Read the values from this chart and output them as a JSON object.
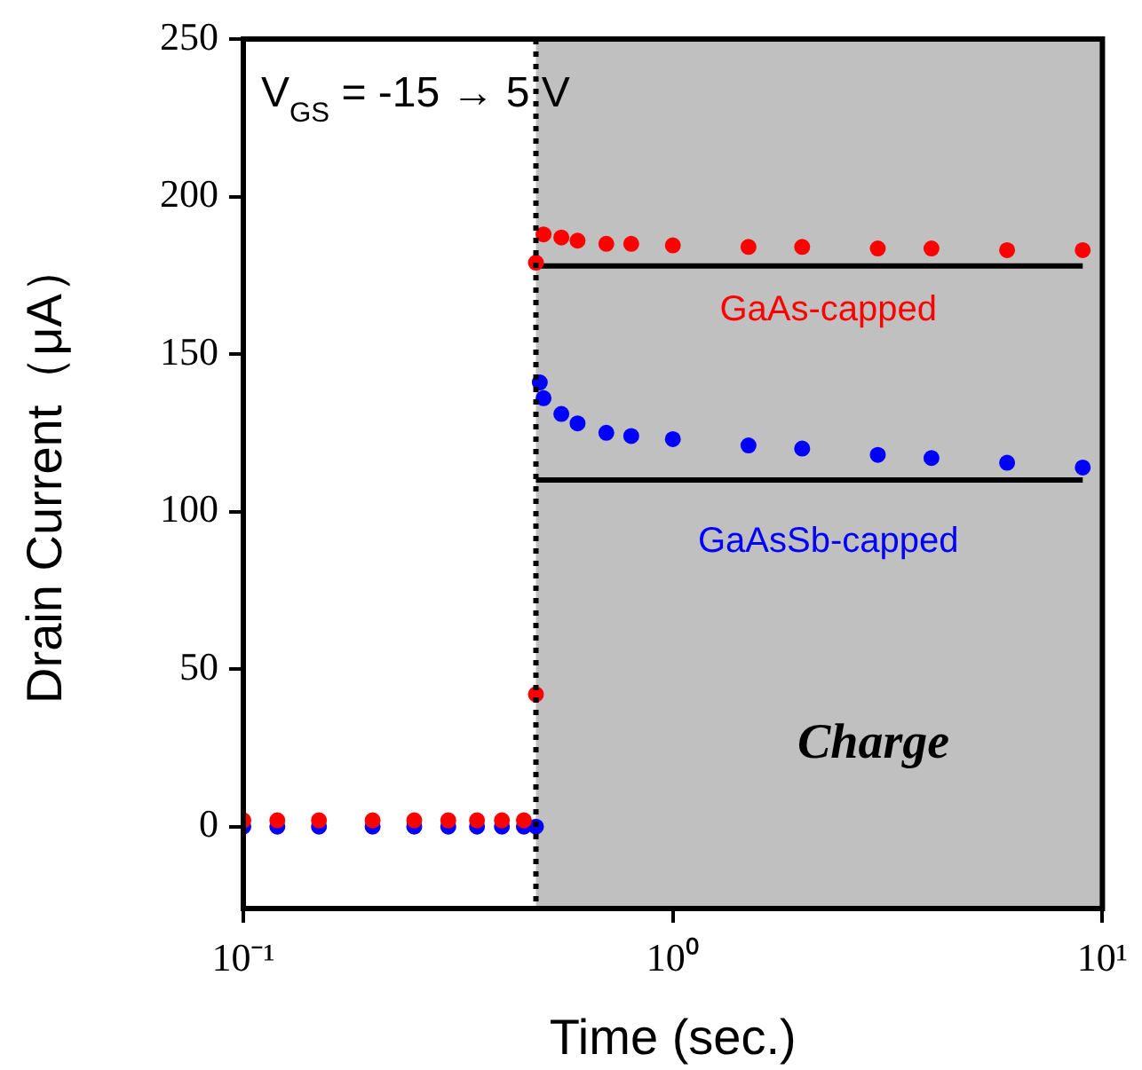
{
  "chart_data": {
    "type": "scatter",
    "xlabel": "Time (sec.)",
    "ylabel": "Drain Current（μA）",
    "log": "x",
    "xlim": [
      0.1,
      10
    ],
    "xticks": [
      {
        "value": 0.1,
        "label": "10⁻¹"
      },
      {
        "value": 1,
        "label": "10⁰"
      },
      {
        "value": 10,
        "label": "10¹"
      }
    ],
    "ylim": [
      -26,
      250
    ],
    "yticks": [
      0,
      50,
      100,
      150,
      200,
      250
    ],
    "grid": false,
    "legend": false,
    "marker": "circle",
    "series": [
      {
        "name": "GaAs-capped",
        "color": "#ff0000",
        "x": [
          0.1,
          0.12,
          0.15,
          0.2,
          0.25,
          0.3,
          0.35,
          0.4,
          0.45,
          0.48,
          0.48,
          0.5,
          0.55,
          0.6,
          0.7,
          0.8,
          1,
          1.5,
          2,
          3,
          4,
          6,
          9
        ],
        "values": [
          2,
          2,
          2,
          2,
          2,
          2,
          2,
          2,
          2,
          42,
          179,
          188,
          187,
          186,
          185,
          185,
          184.5,
          184,
          184,
          183.5,
          183.5,
          183,
          183
        ]
      },
      {
        "name": "GaAsSb-capped",
        "color": "#0000ff",
        "x": [
          0.1,
          0.12,
          0.15,
          0.2,
          0.25,
          0.3,
          0.35,
          0.4,
          0.45,
          0.48,
          0.49,
          0.5,
          0.55,
          0.6,
          0.7,
          0.8,
          1,
          1.5,
          2,
          3,
          4,
          6,
          9
        ],
        "values": [
          0,
          0,
          0,
          0,
          0,
          0,
          0,
          0,
          0,
          0,
          141,
          136,
          131,
          128,
          125,
          124,
          123,
          121,
          120,
          118,
          117,
          115.5,
          114
        ]
      },
      {
        "type": "line",
        "marker": "none",
        "color": "#000000",
        "x": [
          0.48,
          9
        ],
        "values": [
          178,
          178
        ]
      },
      {
        "type": "line",
        "marker": "none",
        "color": "#000000",
        "x": [
          0.48,
          9
        ],
        "values": [
          110,
          110
        ]
      }
    ],
    "bands": [
      {
        "axis": "x",
        "from": 0.48,
        "to": 10,
        "color": "#c0c0c0"
      }
    ],
    "ref_lines": [
      {
        "axis": "x",
        "value": 0.48,
        "color": "#000000",
        "line_style": "dotted"
      }
    ],
    "annotations": [
      "V$_{GS}$ = -15 → 5 V",
      "Charge"
    ]
  }
}
